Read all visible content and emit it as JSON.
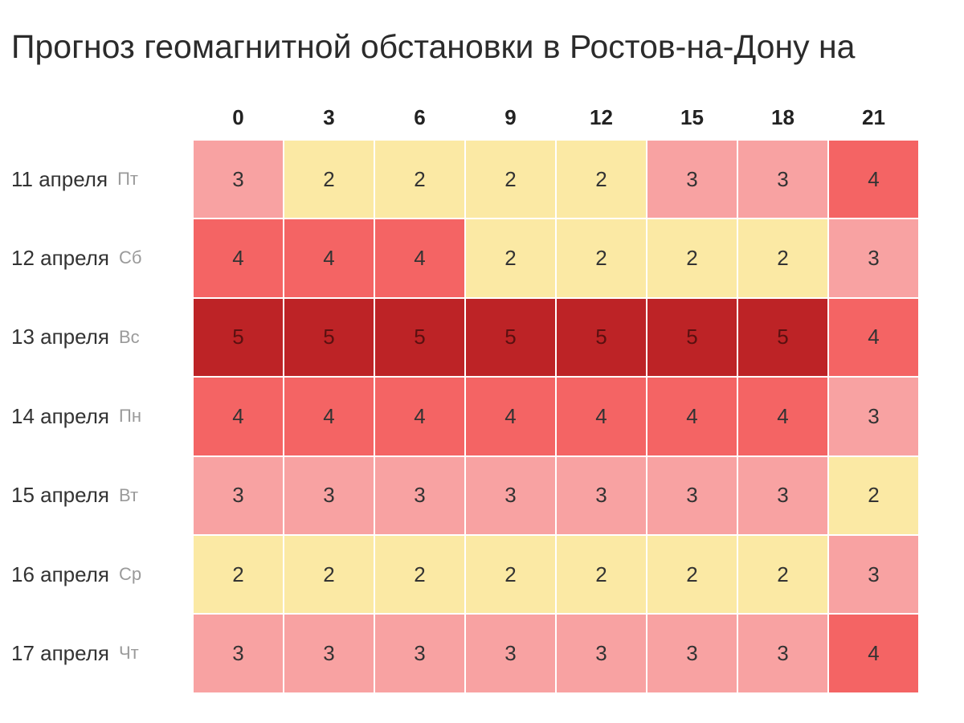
{
  "page": {
    "title": "Прогноз геомагнитной обстановки в Ростов-на-Дону на"
  },
  "colors": {
    "2": "#fbe9a4",
    "3": "#f8a2a2",
    "4": "#f46464",
    "5": "#bd2326"
  },
  "chart_data": {
    "type": "heatmap",
    "title": "Прогноз геомагнитной обстановки в Ростов-на-Дону на",
    "columns": [
      "0",
      "3",
      "6",
      "9",
      "12",
      "15",
      "18",
      "21"
    ],
    "rows": [
      {
        "date": "11 апреля",
        "day": "Пт",
        "values": [
          3,
          2,
          2,
          2,
          2,
          3,
          3,
          4
        ]
      },
      {
        "date": "12 апреля",
        "day": "Сб",
        "values": [
          4,
          4,
          4,
          2,
          2,
          2,
          2,
          3
        ]
      },
      {
        "date": "13 апреля",
        "day": "Вс",
        "values": [
          5,
          5,
          5,
          5,
          5,
          5,
          5,
          4
        ]
      },
      {
        "date": "14 апреля",
        "day": "Пн",
        "values": [
          4,
          4,
          4,
          4,
          4,
          4,
          4,
          3
        ]
      },
      {
        "date": "15 апреля",
        "day": "Вт",
        "values": [
          3,
          3,
          3,
          3,
          3,
          3,
          3,
          2
        ]
      },
      {
        "date": "16 апреля",
        "day": "Ср",
        "values": [
          2,
          2,
          2,
          2,
          2,
          2,
          2,
          3
        ]
      },
      {
        "date": "17 апреля",
        "day": "Чт",
        "values": [
          3,
          3,
          3,
          3,
          3,
          3,
          3,
          4
        ]
      }
    ]
  }
}
